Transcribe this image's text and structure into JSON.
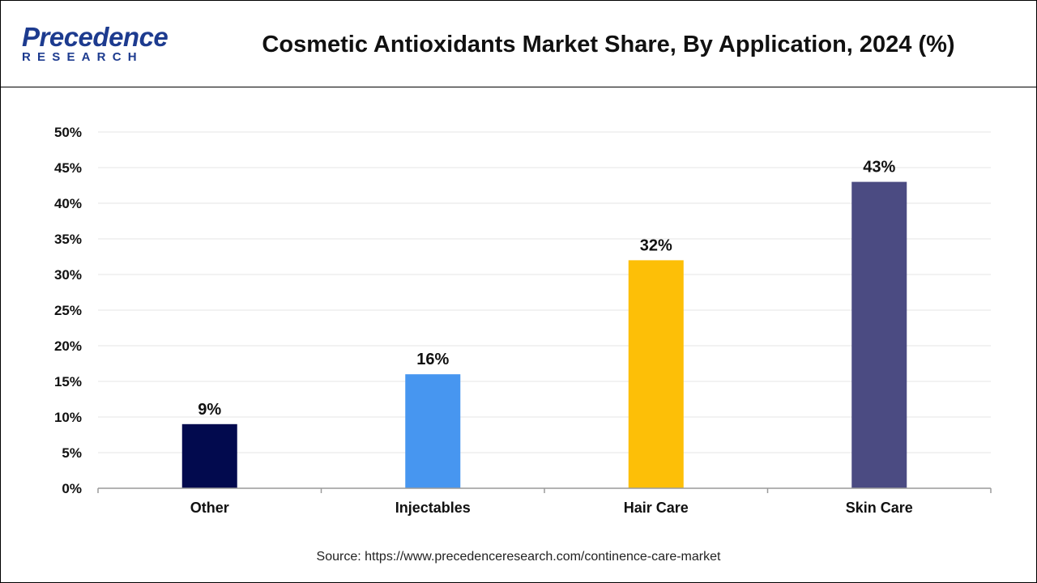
{
  "header": {
    "logo_word": "Precedence",
    "logo_sub": "RESEARCH",
    "title": "Cosmetic Antioxidants Market Share, By Application, 2024 (%)"
  },
  "footer": {
    "source": "Source: https://www.precedenceresearch.com/continence-care-market"
  },
  "colors": {
    "brand": "#1d3b8f",
    "grid": "#e6e6e6",
    "axis": "#9a9a9a"
  },
  "chart_data": {
    "type": "bar",
    "title": "Cosmetic Antioxidants Market Share, By Application, 2024 (%)",
    "xlabel": "",
    "ylabel": "",
    "categories": [
      "Other",
      "Injectables",
      "Hair Care",
      "Skin Care"
    ],
    "values": [
      9,
      16,
      32,
      43
    ],
    "data_labels": [
      "9%",
      "16%",
      "32%",
      "43%"
    ],
    "bar_colors": [
      "#020a4e",
      "#4796f0",
      "#fdbf07",
      "#4b4b82"
    ],
    "ylim": [
      0,
      50
    ],
    "yticks": [
      0,
      5,
      10,
      15,
      20,
      25,
      30,
      35,
      40,
      45,
      50
    ],
    "ytick_labels": [
      "0%",
      "5%",
      "10%",
      "15%",
      "20%",
      "25%",
      "30%",
      "35%",
      "40%",
      "45%",
      "50%"
    ],
    "grid": true,
    "legend": "none"
  }
}
